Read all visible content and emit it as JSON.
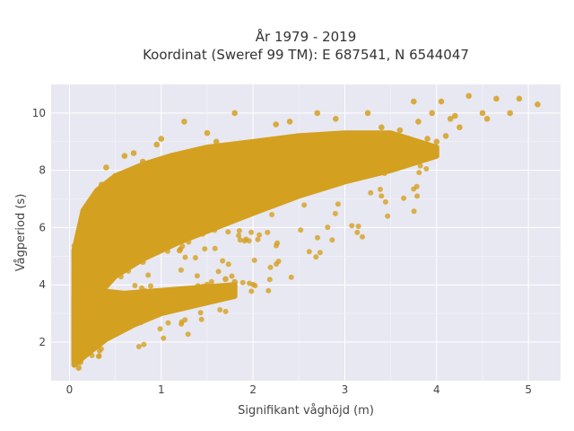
{
  "chart_data": {
    "type": "scatter",
    "title_line1": "År 1979 - 2019",
    "title_line2": "Koordinat (Sweref 99 TM): E 687541, N 6544047",
    "xlabel": "Signifikant våghöjd (m)",
    "ylabel": "Vågperiod (s)",
    "xlim": [
      -0.2,
      5.35
    ],
    "ylim": [
      0.65,
      11.0
    ],
    "xticks": [
      0,
      1,
      2,
      3,
      4,
      5
    ],
    "yticks": [
      2,
      4,
      6,
      8,
      10
    ],
    "grid": true,
    "marker_color": "#D4A020",
    "background_color": "#E8E8F2",
    "series": [
      {
        "values_description_free": true,
        "points": [
          [
            0.1,
            1.1
          ],
          [
            0.12,
            1.3
          ],
          [
            0.15,
            1.6
          ],
          [
            0.1,
            2.0
          ],
          [
            0.08,
            2.5
          ],
          [
            0.1,
            3.0
          ],
          [
            0.12,
            3.5
          ],
          [
            0.1,
            4.0
          ],
          [
            0.15,
            4.5
          ],
          [
            0.2,
            5.0
          ],
          [
            0.15,
            5.5
          ],
          [
            0.2,
            6.0
          ],
          [
            0.25,
            6.5
          ],
          [
            0.3,
            7.0
          ],
          [
            0.35,
            7.5
          ],
          [
            0.5,
            7.8
          ],
          [
            0.8,
            8.3
          ],
          [
            1.0,
            9.1
          ],
          [
            0.95,
            8.9
          ],
          [
            0.7,
            8.6
          ],
          [
            1.5,
            9.3
          ],
          [
            1.6,
            9.0
          ],
          [
            1.8,
            10.0
          ],
          [
            2.25,
            9.6
          ],
          [
            2.4,
            9.7
          ],
          [
            2.7,
            10.0
          ],
          [
            2.9,
            9.8
          ],
          [
            3.25,
            10.0
          ],
          [
            3.4,
            9.5
          ],
          [
            3.6,
            9.4
          ],
          [
            3.8,
            9.7
          ],
          [
            3.75,
            10.4
          ],
          [
            3.95,
            10.0
          ],
          [
            4.05,
            10.4
          ],
          [
            4.15,
            9.8
          ],
          [
            4.2,
            9.9
          ],
          [
            4.25,
            9.5
          ],
          [
            4.35,
            10.6
          ],
          [
            4.5,
            10.0
          ],
          [
            4.55,
            9.8
          ],
          [
            4.65,
            10.5
          ],
          [
            4.8,
            10.0
          ],
          [
            4.9,
            10.5
          ],
          [
            5.1,
            10.3
          ],
          [
            4.1,
            9.2
          ],
          [
            4.0,
            9.0
          ],
          [
            3.9,
            9.1
          ],
          [
            1.25,
            9.7
          ],
          [
            0.4,
            8.1
          ],
          [
            0.6,
            8.5
          ],
          [
            1.8,
            4.1
          ],
          [
            1.7,
            4.2
          ],
          [
            1.5,
            4.0
          ],
          [
            1.2,
            3.7
          ],
          [
            1.0,
            3.6
          ],
          [
            0.8,
            3.4
          ],
          [
            0.6,
            3.0
          ],
          [
            0.4,
            2.6
          ],
          [
            0.3,
            2.3
          ],
          [
            0.2,
            2.0
          ],
          [
            2.0,
            8.0
          ],
          [
            2.5,
            8.4
          ],
          [
            3.0,
            8.7
          ],
          [
            3.5,
            8.9
          ],
          [
            1.5,
            7.2
          ],
          [
            2.0,
            6.8
          ],
          [
            2.5,
            7.2
          ],
          [
            1.0,
            5.5
          ],
          [
            0.8,
            4.8
          ],
          [
            1.2,
            5.2
          ],
          [
            1.8,
            6.3
          ],
          [
            3.0,
            7.7
          ]
        ]
      }
    ]
  }
}
